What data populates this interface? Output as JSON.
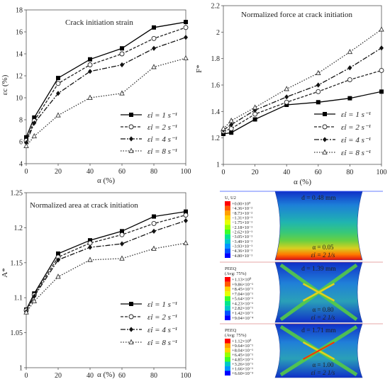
{
  "chart_data": [
    {
      "type": "line",
      "title": "Crack initiation strain",
      "xlabel": "α (%)",
      "ylabel": "εc (%)",
      "x": [
        0,
        5,
        20,
        40,
        60,
        80,
        100
      ],
      "xticks": [
        "0",
        "20",
        "40",
        "60",
        "80",
        "100"
      ],
      "xlim": [
        0,
        100
      ],
      "ylim": [
        4,
        18
      ],
      "yticks": [
        "4",
        "6",
        "8",
        "10",
        "12",
        "14",
        "16",
        "18"
      ],
      "grid": false,
      "legend_position": "bottom-right",
      "series": [
        {
          "name": "ε̇i = 1 s⁻¹",
          "values": [
            6.4,
            8.2,
            11.8,
            13.5,
            14.5,
            16.4,
            16.9
          ]
        },
        {
          "name": "ε̇i = 2 s⁻¹",
          "values": [
            6.1,
            7.9,
            11.3,
            13.0,
            14.0,
            15.4,
            16.4
          ]
        },
        {
          "name": "ε̇i = 4 s⁻¹",
          "values": [
            5.9,
            7.7,
            10.4,
            12.4,
            13.0,
            14.5,
            15.5
          ]
        },
        {
          "name": "ε̇i = 8 s⁻¹",
          "values": [
            5.6,
            6.5,
            8.4,
            10.0,
            10.4,
            12.8,
            13.6
          ]
        }
      ]
    },
    {
      "type": "line",
      "title": "Normalized force at crack initiation",
      "xlabel": "α (%)",
      "ylabel": "F*",
      "x": [
        0,
        5,
        20,
        40,
        60,
        80,
        100
      ],
      "xticks": [
        "0",
        "20",
        "40",
        "60",
        "80",
        "100"
      ],
      "xlim": [
        0,
        100
      ],
      "ylim": [
        1.0,
        2.2
      ],
      "yticks": [
        "1",
        "1.2",
        "1.4",
        "1.6",
        "1.8",
        "2",
        "2.2"
      ],
      "grid": false,
      "legend_position": "bottom-right",
      "series": [
        {
          "name": "ε̇i = 1 s⁻¹",
          "values": [
            1.23,
            1.24,
            1.34,
            1.45,
            1.47,
            1.5,
            1.55
          ]
        },
        {
          "name": "ε̇i = 2 s⁻¹",
          "values": [
            1.25,
            1.27,
            1.38,
            1.47,
            1.55,
            1.64,
            1.71
          ]
        },
        {
          "name": "ε̇i = 4 s⁻¹",
          "values": [
            1.26,
            1.3,
            1.41,
            1.51,
            1.6,
            1.73,
            1.88
          ]
        },
        {
          "name": "ε̇i = 8 s⁻¹",
          "values": [
            1.27,
            1.33,
            1.43,
            1.57,
            1.69,
            1.85,
            2.02
          ]
        }
      ]
    },
    {
      "type": "line",
      "title": "Normalized area at crack initiation",
      "xlabel": "α (%)",
      "ylabel": "A*",
      "x": [
        0,
        5,
        20,
        40,
        60,
        80,
        100
      ],
      "xticks": [
        "0",
        "20",
        "40",
        "60",
        "80",
        "100"
      ],
      "xlim": [
        0,
        100
      ],
      "ylim": [
        1.0,
        1.25
      ],
      "yticks": [
        "1",
        "1.05",
        "1.1",
        "1.15",
        "1.2",
        "1.25"
      ],
      "grid": false,
      "legend_position": "bottom-right",
      "series": [
        {
          "name": "ε̇i = 1 s⁻¹",
          "values": [
            1.083,
            1.106,
            1.163,
            1.182,
            1.195,
            1.216,
            1.223
          ]
        },
        {
          "name": "ε̇i = 2 s⁻¹",
          "values": [
            1.082,
            1.104,
            1.158,
            1.178,
            1.19,
            1.206,
            1.218
          ]
        },
        {
          "name": "ε̇i = 4 s⁻¹",
          "values": [
            1.08,
            1.102,
            1.154,
            1.172,
            1.177,
            1.195,
            1.21
          ]
        },
        {
          "name": "ε̇i = 8 s⁻¹",
          "values": [
            1.079,
            1.095,
            1.13,
            1.154,
            1.156,
            1.17,
            1.178
          ]
        }
      ]
    }
  ],
  "series_styles": [
    {
      "marker": "square-filled",
      "dash": "",
      "color": "#000000"
    },
    {
      "marker": "circle-open",
      "dash": "4,2",
      "color": "#222222"
    },
    {
      "marker": "diamond-filled",
      "dash": "7,2,2,2",
      "color": "#111111"
    },
    {
      "marker": "triangle-open",
      "dash": "1.5,2",
      "color": "#333333"
    }
  ],
  "sim_panels": [
    {
      "legend_title": "U, U2",
      "values": [
        "+0.00×10⁰",
        "−4.36×10⁻²",
        "−8.73×10⁻²",
        "−1.31×10⁻¹",
        "−1.75×10⁻¹",
        "−2.18×10⁻¹",
        "−2.62×10⁻¹",
        "−3.05×10⁻¹",
        "−3.49×10⁻¹",
        "−3.93×10⁻¹",
        "−4.36×10⁻¹",
        "−4.80×10⁻¹"
      ],
      "d_label": "d = 0.48 mm",
      "alpha_label": "α = 0.05",
      "rate_label": "ε̇i = 2 1/s"
    },
    {
      "legend_title": "PEEQ",
      "legend_subtitle": "(Avg: 75%)",
      "values": [
        "+1.13×10⁰",
        "+9.86×10⁻¹",
        "+8.45×10⁻¹",
        "+7.04×10⁻¹",
        "+5.64×10⁻¹",
        "+4.23×10⁻¹",
        "+2.82×10⁻¹",
        "+1.42×10⁻¹",
        "+9.04×10⁻⁴"
      ],
      "d_label": "d = 1.39 mm",
      "alpha_label": "α = 0.80",
      "rate_label": "ε̇i = 2 1/s"
    },
    {
      "legend_title": "PEEQ",
      "legend_subtitle": "(Avg: 75%)",
      "values": [
        "+1.12×10⁰",
        "+9.64×10⁻¹",
        "+8.04×10⁻¹",
        "+6.45×10⁻¹",
        "+4.85×10⁻¹",
        "+3.26×10⁻¹",
        "+1.66×10⁻¹",
        "+6.60×10⁻³"
      ],
      "d_label": "d = 1.71 mm",
      "alpha_label": "α = 1.00",
      "rate_label": "ε̇i = 2 1/s"
    }
  ],
  "contour_colors": [
    "#ff0000",
    "#ff5a00",
    "#ffa000",
    "#ffd200",
    "#e6ff00",
    "#96ff00",
    "#3cff28",
    "#00e68c",
    "#00c8c8",
    "#0096ff",
    "#0050ff",
    "#0000ff"
  ]
}
